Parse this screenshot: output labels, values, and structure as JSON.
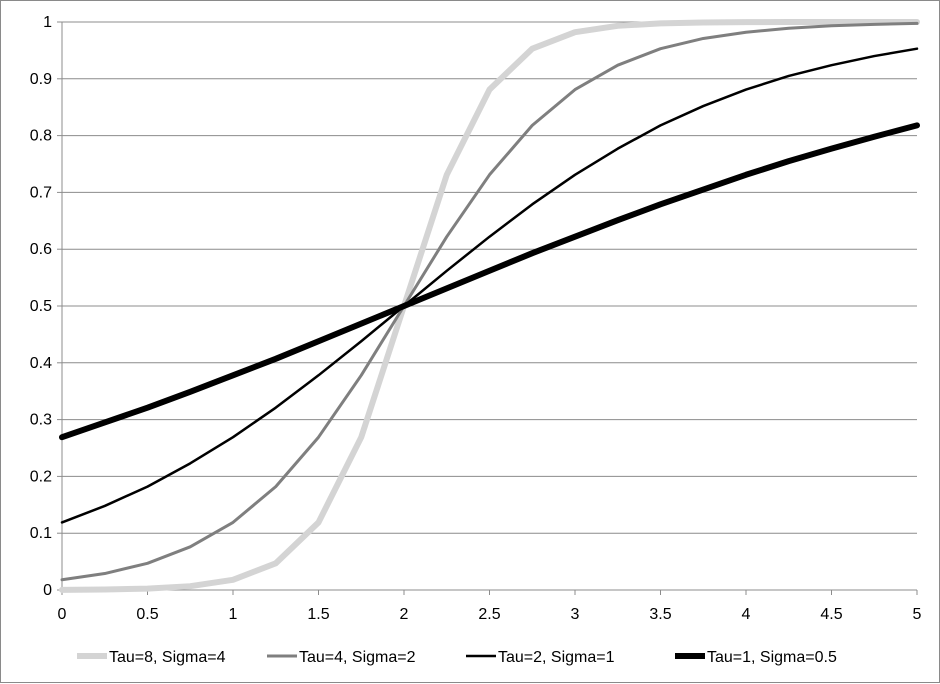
{
  "chart_data": {
    "type": "line",
    "title": "",
    "xlabel": "",
    "ylabel": "",
    "xlim": [
      0,
      5
    ],
    "ylim": [
      0,
      1
    ],
    "x_ticks": [
      "0",
      "0.5",
      "1",
      "1.5",
      "2",
      "2.5",
      "3",
      "3.5",
      "4",
      "4.5",
      "5"
    ],
    "y_ticks": [
      "0",
      "0.1",
      "0.2",
      "0.3",
      "0.4",
      "0.5",
      "0.6",
      "0.7",
      "0.8",
      "0.9",
      "1"
    ],
    "grid": "horizontal",
    "legend_position": "bottom",
    "x": [
      0,
      0.25,
      0.5,
      0.75,
      1,
      1.25,
      1.5,
      1.75,
      2,
      2.25,
      2.5,
      2.75,
      3,
      3.25,
      3.5,
      3.75,
      4,
      4.25,
      4.5,
      4.75,
      5
    ],
    "series": [
      {
        "name": "Tau=8, Sigma=4",
        "color": "#d4d4d4",
        "width": 6,
        "values": [
          0.0003,
          0.0009,
          0.0025,
          0.0067,
          0.018,
          0.047,
          0.119,
          0.269,
          0.5,
          0.731,
          0.881,
          0.953,
          0.982,
          0.9933,
          0.9975,
          0.9991,
          0.9997,
          0.9999,
          1.0,
          1.0,
          1.0
        ]
      },
      {
        "name": "Tau=4, Sigma=2",
        "color": "#7f7f7f",
        "width": 3,
        "values": [
          0.018,
          0.029,
          0.047,
          0.076,
          0.119,
          0.182,
          0.269,
          0.378,
          0.5,
          0.622,
          0.731,
          0.818,
          0.881,
          0.924,
          0.953,
          0.971,
          0.982,
          0.989,
          0.9933,
          0.9959,
          0.9975
        ]
      },
      {
        "name": "Tau=2, Sigma=1",
        "color": "#000000",
        "width": 2.5,
        "values": [
          0.119,
          0.148,
          0.182,
          0.223,
          0.269,
          0.321,
          0.378,
          0.438,
          0.5,
          0.562,
          0.622,
          0.679,
          0.731,
          0.777,
          0.818,
          0.852,
          0.881,
          0.905,
          0.924,
          0.94,
          0.953
        ]
      },
      {
        "name": "Tau=1, Sigma=0.5",
        "color": "#000000",
        "width": 6,
        "values": [
          0.269,
          0.295,
          0.321,
          0.349,
          0.378,
          0.407,
          0.438,
          0.469,
          0.5,
          0.531,
          0.562,
          0.593,
          0.622,
          0.651,
          0.679,
          0.705,
          0.731,
          0.755,
          0.777,
          0.798,
          0.818
        ]
      }
    ]
  }
}
